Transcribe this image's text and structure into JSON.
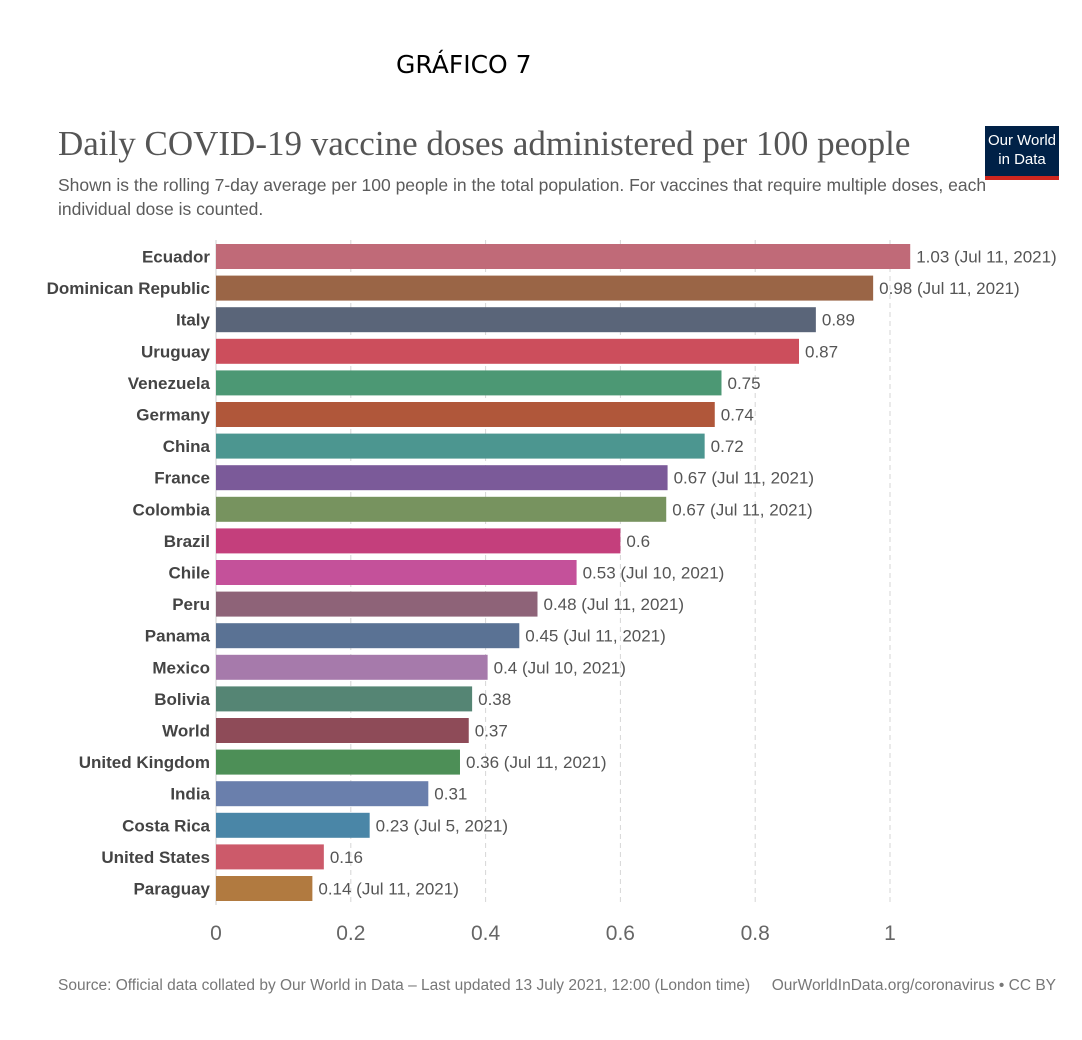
{
  "figure_label": "GRÁFICO 7",
  "logo": {
    "line1": "Our World",
    "line2": "in Data"
  },
  "footer": {
    "source": "Source: Official data collated by Our World in Data – Last updated 13 July 2021, 12:00 (London time)",
    "link": "OurWorldInData.org/coronavirus • CC BY"
  },
  "chart_data": {
    "type": "bar",
    "orientation": "horizontal",
    "title": "Daily COVID-19 vaccine doses administered per 100 people",
    "subtitle": "Shown is the rolling 7-day average per 100 people in the total population. For vaccines that require multiple doses, each individual dose is counted.",
    "xlim": [
      0,
      1.03
    ],
    "xticks": [
      "0",
      "0.2",
      "0.4",
      "0.6",
      "0.8",
      "1"
    ],
    "grid": true,
    "categories": [
      "Ecuador",
      "Dominican Republic",
      "Italy",
      "Uruguay",
      "Venezuela",
      "Germany",
      "China",
      "France",
      "Colombia",
      "Brazil",
      "Chile",
      "Peru",
      "Panama",
      "Mexico",
      "Bolivia",
      "World",
      "United Kingdom",
      "India",
      "Costa Rica",
      "United States",
      "Paraguay"
    ],
    "values": [
      1.03,
      0.975,
      0.89,
      0.865,
      0.75,
      0.74,
      0.725,
      0.67,
      0.668,
      0.6,
      0.535,
      0.477,
      0.45,
      0.403,
      0.38,
      0.375,
      0.362,
      0.315,
      0.228,
      0.16,
      0.143
    ],
    "value_labels": [
      "1.03 (Jul 11, 2021)",
      "0.98 (Jul 11, 2021)",
      "0.89",
      "0.87",
      "0.75",
      "0.74",
      "0.72",
      "0.67 (Jul 11, 2021)",
      "0.67 (Jul 11, 2021)",
      "0.6",
      "0.53 (Jul 10, 2021)",
      "0.48 (Jul 11, 2021)",
      "0.45 (Jul 11, 2021)",
      "0.4 (Jul 10, 2021)",
      "0.38",
      "0.37",
      "0.36 (Jul 11, 2021)",
      "0.31",
      "0.23 (Jul 5, 2021)",
      "0.16",
      "0.14 (Jul 11, 2021)"
    ],
    "colors": [
      "#c06a78",
      "#9a6546",
      "#5a6579",
      "#cc4e5c",
      "#4c9874",
      "#b0573a",
      "#4c9690",
      "#7b5a99",
      "#77935f",
      "#c43f7c",
      "#c4519a",
      "#8e6378",
      "#5a7294",
      "#a67aab",
      "#558574",
      "#8e4b58",
      "#4d8f57",
      "#6a7fac",
      "#4a86a7",
      "#cc5a6a",
      "#b17a40"
    ]
  }
}
